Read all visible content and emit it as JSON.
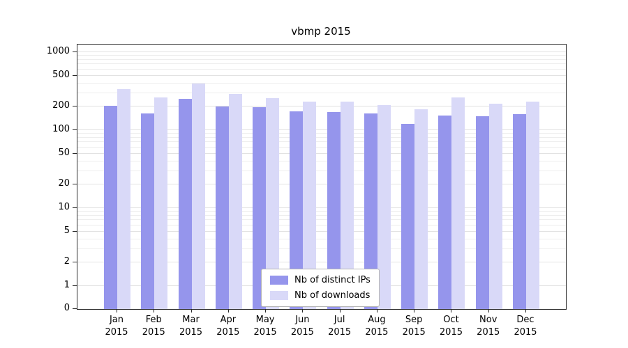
{
  "chart_data": {
    "type": "bar",
    "title": "vbmp 2015",
    "year": "2015",
    "categories": [
      "Jan",
      "Feb",
      "Mar",
      "Apr",
      "May",
      "Jun",
      "Jul",
      "Aug",
      "Sep",
      "Oct",
      "Nov",
      "Dec"
    ],
    "series": [
      {
        "name": "Nb of distinct IPs",
        "color": "#9595ec",
        "values": [
          205,
          165,
          250,
          200,
          198,
          175,
          170,
          165,
          120,
          155,
          150,
          160
        ]
      },
      {
        "name": "Nb of downloads",
        "color": "#d9d9f8",
        "values": [
          335,
          265,
          395,
          290,
          258,
          232,
          232,
          210,
          185,
          265,
          218,
          232
        ]
      }
    ],
    "yscale": "symlog",
    "yticks": [
      0,
      1,
      2,
      5,
      10,
      20,
      50,
      100,
      200,
      500,
      1000
    ],
    "ylim": [
      0,
      1300
    ],
    "grid": "horizontal",
    "legend_position": "bottom-center"
  }
}
